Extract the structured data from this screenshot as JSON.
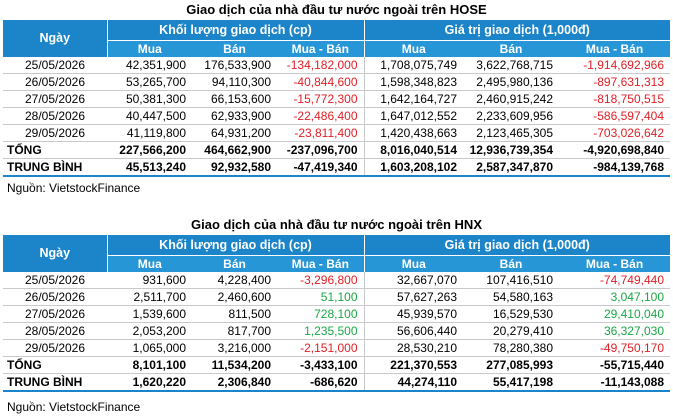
{
  "hose": {
    "title": "Giao dịch của nhà đầu tư nước ngoài trên HOSE",
    "col_ngay": "Ngày",
    "group_volume": "Khối lượng giao dịch (cp)",
    "group_value": "Giá trị giao dịch (1,000đ)",
    "sub_mua": "Mua",
    "sub_ban": "Bán",
    "sub_net": "Mua - Bán",
    "rows": [
      {
        "date": "25/05/2026",
        "vol_buy": "42,351,900",
        "vol_sell": "176,533,900",
        "vol_net": "-134,182,000",
        "vol_net_sign": "neg",
        "val_buy": "1,708,075,749",
        "val_sell": "3,622,768,715",
        "val_net": "-1,914,692,966",
        "val_net_sign": "neg"
      },
      {
        "date": "26/05/2026",
        "vol_buy": "53,265,700",
        "vol_sell": "94,110,300",
        "vol_net": "-40,844,600",
        "vol_net_sign": "neg",
        "val_buy": "1,598,348,823",
        "val_sell": "2,495,980,136",
        "val_net": "-897,631,313",
        "val_net_sign": "neg"
      },
      {
        "date": "27/05/2026",
        "vol_buy": "50,381,300",
        "vol_sell": "66,153,600",
        "vol_net": "-15,772,300",
        "vol_net_sign": "neg",
        "val_buy": "1,642,164,727",
        "val_sell": "2,460,915,242",
        "val_net": "-818,750,515",
        "val_net_sign": "neg"
      },
      {
        "date": "28/05/2026",
        "vol_buy": "40,447,500",
        "vol_sell": "62,933,900",
        "vol_net": "-22,486,400",
        "vol_net_sign": "neg",
        "val_buy": "1,647,012,552",
        "val_sell": "2,233,609,956",
        "val_net": "-586,597,404",
        "val_net_sign": "neg"
      },
      {
        "date": "29/05/2026",
        "vol_buy": "41,119,800",
        "vol_sell": "64,931,200",
        "vol_net": "-23,811,400",
        "vol_net_sign": "neg",
        "val_buy": "1,420,438,663",
        "val_sell": "2,123,465,305",
        "val_net": "-703,026,642",
        "val_net_sign": "neg"
      }
    ],
    "total": {
      "label": "TỔNG",
      "vol_buy": "227,566,200",
      "vol_sell": "464,662,900",
      "vol_net": "-237,096,700",
      "val_buy": "8,016,040,514",
      "val_sell": "12,936,739,354",
      "val_net": "-4,920,698,840"
    },
    "average": {
      "label": "TRUNG BÌNH",
      "vol_buy": "45,513,240",
      "vol_sell": "92,932,580",
      "vol_net": "-47,419,340",
      "val_buy": "1,603,208,102",
      "val_sell": "2,587,347,870",
      "val_net": "-984,139,768"
    },
    "source": "Nguồn: VietstockFinance"
  },
  "hnx": {
    "title": "Giao dịch của nhà đầu tư nước ngoài trên HNX",
    "col_ngay": "Ngày",
    "group_volume": "Khối lượng giao dịch (cp)",
    "group_value": "Giá trị giao dịch (1,000đ)",
    "sub_mua": "Mua",
    "sub_ban": "Bán",
    "sub_net": "Mua - Bán",
    "rows": [
      {
        "date": "25/05/2026",
        "vol_buy": "931,600",
        "vol_sell": "4,228,400",
        "vol_net": "-3,296,800",
        "vol_net_sign": "neg",
        "val_buy": "32,667,070",
        "val_sell": "107,416,510",
        "val_net": "-74,749,440",
        "val_net_sign": "neg"
      },
      {
        "date": "26/05/2026",
        "vol_buy": "2,511,700",
        "vol_sell": "2,460,600",
        "vol_net": "51,100",
        "vol_net_sign": "pos",
        "val_buy": "57,627,263",
        "val_sell": "54,580,163",
        "val_net": "3,047,100",
        "val_net_sign": "pos"
      },
      {
        "date": "27/05/2026",
        "vol_buy": "1,539,600",
        "vol_sell": "811,500",
        "vol_net": "728,100",
        "vol_net_sign": "pos",
        "val_buy": "45,939,570",
        "val_sell": "16,529,530",
        "val_net": "29,410,040",
        "val_net_sign": "pos"
      },
      {
        "date": "28/05/2026",
        "vol_buy": "2,053,200",
        "vol_sell": "817,700",
        "vol_net": "1,235,500",
        "vol_net_sign": "pos",
        "val_buy": "56,606,440",
        "val_sell": "20,279,410",
        "val_net": "36,327,030",
        "val_net_sign": "pos"
      },
      {
        "date": "29/05/2026",
        "vol_buy": "1,065,000",
        "vol_sell": "3,216,000",
        "vol_net": "-2,151,000",
        "vol_net_sign": "neg",
        "val_buy": "28,530,210",
        "val_sell": "78,280,380",
        "val_net": "-49,750,170",
        "val_net_sign": "neg"
      }
    ],
    "total": {
      "label": "TỔNG",
      "vol_buy": "8,101,100",
      "vol_sell": "11,534,200",
      "vol_net": "-3,433,100",
      "val_buy": "221,370,553",
      "val_sell": "277,085,993",
      "val_net": "-55,715,440"
    },
    "average": {
      "label": "TRUNG BÌNH",
      "vol_buy": "1,620,220",
      "vol_sell": "2,306,840",
      "vol_net": "-686,620",
      "val_buy": "44,274,110",
      "val_sell": "55,417,198",
      "val_net": "-11,143,088"
    },
    "source": "Nguồn: VietstockFinance"
  },
  "colors": {
    "header_blue": "#1c84c8",
    "negative": "#e31e24",
    "positive": "#1aa845"
  }
}
